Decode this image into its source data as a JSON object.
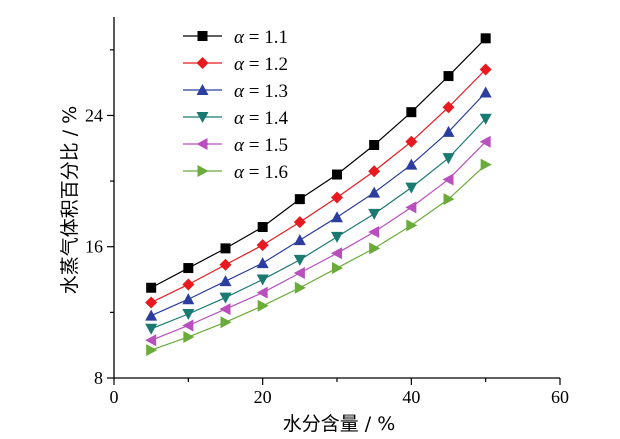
{
  "chart_data": {
    "type": "line",
    "xlabel": "水分含量 / %",
    "ylabel": "水蒸气体积百分比 / %",
    "xlim": [
      0,
      60
    ],
    "ylim": [
      8,
      30
    ],
    "x_ticks": [
      0,
      20,
      40,
      60
    ],
    "y_ticks": [
      8,
      16,
      24
    ],
    "x_tick_labels": [
      "0",
      "20",
      "40",
      "60"
    ],
    "y_tick_labels": [
      "8",
      "16",
      "24"
    ],
    "grid": false,
    "legend_position": "top-left",
    "x": [
      5,
      10,
      15,
      20,
      25,
      30,
      35,
      40,
      45,
      50
    ],
    "series": [
      {
        "name": "α = 1.1",
        "alpha_symbol": "α",
        "alpha_value": "= 1.1",
        "color": "#000000",
        "marker": "square",
        "values": [
          13.5,
          14.7,
          15.9,
          17.2,
          18.9,
          20.4,
          22.2,
          24.2,
          26.4,
          28.7
        ]
      },
      {
        "name": "α = 1.2",
        "alpha_symbol": "α",
        "alpha_value": "= 1.2",
        "color": "#e8191f",
        "marker": "diamond",
        "values": [
          12.6,
          13.7,
          14.9,
          16.1,
          17.5,
          19.0,
          20.6,
          22.4,
          24.5,
          26.8
        ]
      },
      {
        "name": "α = 1.3",
        "alpha_symbol": "α",
        "alpha_value": "= 1.3",
        "color": "#2b3d9e",
        "marker": "triangle-up",
        "values": [
          11.8,
          12.8,
          13.9,
          15.0,
          16.4,
          17.8,
          19.3,
          21.0,
          23.0,
          25.4
        ]
      },
      {
        "name": "α = 1.4",
        "alpha_symbol": "α",
        "alpha_value": "= 1.4",
        "color": "#1a7a72",
        "marker": "triangle-down",
        "values": [
          11.0,
          11.9,
          12.9,
          14.0,
          15.2,
          16.6,
          18.0,
          19.6,
          21.4,
          23.8
        ]
      },
      {
        "name": "α = 1.5",
        "alpha_symbol": "α",
        "alpha_value": "= 1.5",
        "color": "#b84fbd",
        "marker": "triangle-left",
        "values": [
          10.3,
          11.2,
          12.2,
          13.2,
          14.4,
          15.6,
          16.9,
          18.4,
          20.1,
          22.4
        ]
      },
      {
        "name": "α = 1.6",
        "alpha_symbol": "α",
        "alpha_value": "= 1.6",
        "color": "#6aab3a",
        "marker": "triangle-right",
        "values": [
          9.7,
          10.5,
          11.4,
          12.4,
          13.5,
          14.7,
          15.9,
          17.3,
          18.9,
          21.0
        ]
      }
    ]
  }
}
